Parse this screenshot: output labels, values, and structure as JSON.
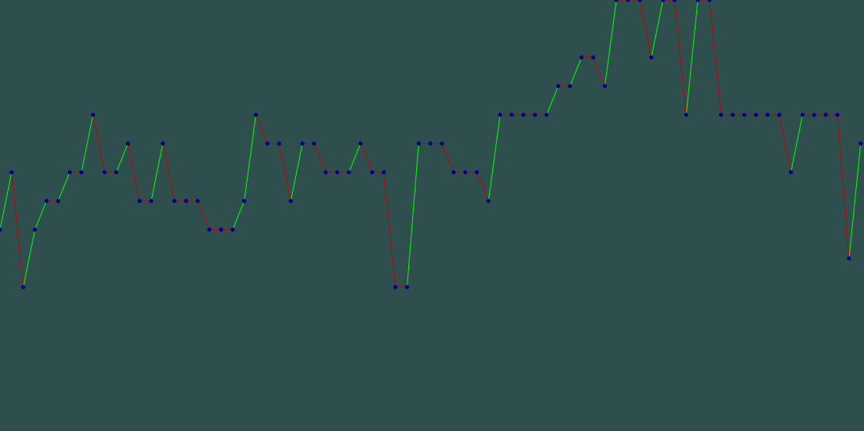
{
  "chart_data": {
    "type": "line",
    "x": [
      0,
      1,
      2,
      3,
      4,
      5,
      6,
      7,
      8,
      9,
      10,
      11,
      12,
      13,
      14,
      15,
      16,
      17,
      18,
      19,
      20,
      21,
      22,
      23,
      24,
      25,
      26,
      27,
      28,
      29,
      30,
      31,
      32,
      33,
      34,
      35,
      36,
      37,
      38,
      39,
      40,
      41,
      42,
      43,
      44,
      45,
      46,
      47,
      48,
      49,
      50,
      51,
      52,
      53,
      54,
      55,
      56,
      57,
      58,
      59,
      60,
      61,
      62,
      63,
      64,
      65,
      66,
      67,
      68,
      69,
      70,
      71,
      72,
      73,
      74
    ],
    "series": [
      {
        "values": [
          8,
          10,
          6,
          8,
          9,
          9,
          10,
          10,
          12,
          10,
          10,
          11,
          9,
          9,
          11,
          9,
          9,
          9,
          8,
          8,
          8,
          9,
          12,
          11,
          11,
          9,
          11,
          11,
          10,
          10,
          10,
          11,
          10,
          10,
          6,
          6,
          11,
          11,
          11,
          10,
          10,
          10,
          9,
          12,
          12,
          12,
          12,
          12,
          13,
          13,
          14,
          14,
          13,
          16,
          16,
          16,
          14,
          16,
          16,
          12,
          16,
          16,
          12,
          12,
          12,
          12,
          12,
          12,
          10,
          12,
          12,
          12,
          12,
          7,
          11
        ]
      }
    ],
    "ylim": [
      0,
      16
    ],
    "up_color": "#00ff00",
    "down_color": "#cc0000",
    "flat_color": "#cc0000",
    "marker_color": "#00008b",
    "background_color": "#2f4f4f",
    "grid": false,
    "legend": "none"
  }
}
